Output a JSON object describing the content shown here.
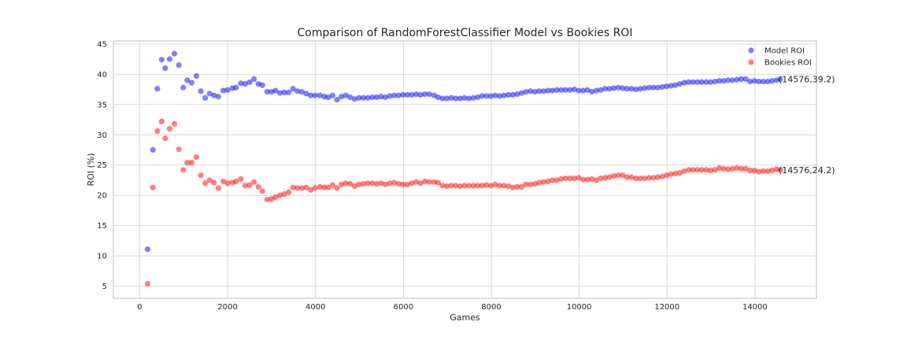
{
  "chart_data": {
    "type": "scatter",
    "title": "Comparison of RandomForestClassifier Model vs Bookies ROI",
    "xlabel": "Games",
    "ylabel": "ROI (%)",
    "xlim": [
      -600,
      15400
    ],
    "ylim": [
      3,
      45.5
    ],
    "xticks": [
      0,
      2000,
      4000,
      6000,
      8000,
      10000,
      12000,
      14000
    ],
    "yticks": [
      5,
      10,
      15,
      20,
      25,
      30,
      35,
      40,
      45
    ],
    "grid": true,
    "legend_position": "top-right",
    "series": [
      {
        "name": "Model ROI",
        "color": "#0000ff",
        "points": [
          [
            180,
            11.1
          ],
          [
            300,
            27.5
          ],
          [
            400,
            37.6
          ],
          [
            500,
            42.4
          ],
          [
            580,
            41.0
          ],
          [
            680,
            42.5
          ],
          [
            790,
            43.4
          ],
          [
            890,
            41.5
          ],
          [
            990,
            37.8
          ],
          [
            1080,
            39.0
          ],
          [
            1180,
            38.6
          ],
          [
            1290,
            39.7
          ],
          [
            1390,
            37.2
          ],
          [
            1490,
            36.1
          ],
          [
            1590,
            36.8
          ],
          [
            1690,
            36.5
          ],
          [
            1790,
            36.3
          ],
          [
            1900,
            37.3
          ],
          [
            2000,
            37.4
          ],
          [
            2110,
            37.7
          ],
          [
            2190,
            37.8
          ],
          [
            2300,
            38.5
          ],
          [
            2400,
            38.4
          ],
          [
            2500,
            38.7
          ],
          [
            2600,
            39.2
          ],
          [
            2700,
            38.4
          ],
          [
            2790,
            38.2
          ],
          [
            2900,
            37.1
          ],
          [
            3000,
            37.1
          ],
          [
            3090,
            37.3
          ],
          [
            3190,
            36.9
          ],
          [
            3290,
            37.0
          ],
          [
            3390,
            37.0
          ],
          [
            3490,
            37.6
          ],
          [
            3590,
            37.2
          ],
          [
            3690,
            37.1
          ],
          [
            3790,
            36.8
          ],
          [
            3890,
            36.5
          ],
          [
            3990,
            36.5
          ],
          [
            4100,
            36.5
          ],
          [
            4200,
            36.3
          ],
          [
            4290,
            36.2
          ],
          [
            4390,
            36.5
          ],
          [
            4490,
            35.8
          ],
          [
            4590,
            36.3
          ],
          [
            4690,
            36.5
          ],
          [
            4790,
            36.2
          ],
          [
            4890,
            35.9
          ],
          [
            4990,
            36.1
          ],
          [
            5090,
            36.1
          ],
          [
            5190,
            36.1
          ],
          [
            5290,
            36.2
          ],
          [
            5390,
            36.2
          ],
          [
            5490,
            36.3
          ],
          [
            5590,
            36.2
          ],
          [
            5690,
            36.4
          ],
          [
            5790,
            36.5
          ],
          [
            5890,
            36.5
          ],
          [
            5990,
            36.6
          ],
          [
            6090,
            36.6
          ],
          [
            6190,
            36.6
          ],
          [
            6290,
            36.7
          ],
          [
            6390,
            36.6
          ],
          [
            6490,
            36.7
          ],
          [
            6590,
            36.7
          ],
          [
            6700,
            36.5
          ],
          [
            6790,
            36.2
          ],
          [
            6890,
            36.0
          ],
          [
            6990,
            36.0
          ],
          [
            7090,
            36.1
          ],
          [
            7190,
            36.0
          ],
          [
            7290,
            36.0
          ],
          [
            7390,
            36.1
          ],
          [
            7490,
            36.0
          ],
          [
            7590,
            36.1
          ],
          [
            7690,
            36.2
          ],
          [
            7790,
            36.4
          ],
          [
            7890,
            36.4
          ],
          [
            7990,
            36.4
          ],
          [
            8090,
            36.5
          ],
          [
            8190,
            36.4
          ],
          [
            8290,
            36.5
          ],
          [
            8390,
            36.6
          ],
          [
            8490,
            36.6
          ],
          [
            8590,
            36.7
          ],
          [
            8690,
            36.9
          ],
          [
            8790,
            37.1
          ],
          [
            8890,
            37.2
          ],
          [
            8990,
            37.1
          ],
          [
            9090,
            37.2
          ],
          [
            9190,
            37.2
          ],
          [
            9290,
            37.3
          ],
          [
            9390,
            37.3
          ],
          [
            9490,
            37.4
          ],
          [
            9590,
            37.4
          ],
          [
            9690,
            37.4
          ],
          [
            9790,
            37.4
          ],
          [
            9890,
            37.5
          ],
          [
            9990,
            37.3
          ],
          [
            10090,
            37.3
          ],
          [
            10190,
            37.4
          ],
          [
            10290,
            37.1
          ],
          [
            10390,
            37.3
          ],
          [
            10490,
            37.4
          ],
          [
            10590,
            37.6
          ],
          [
            10690,
            37.6
          ],
          [
            10790,
            37.7
          ],
          [
            10890,
            37.8
          ],
          [
            10990,
            37.7
          ],
          [
            11090,
            37.6
          ],
          [
            11190,
            37.6
          ],
          [
            11290,
            37.5
          ],
          [
            11390,
            37.6
          ],
          [
            11490,
            37.7
          ],
          [
            11590,
            37.8
          ],
          [
            11690,
            37.8
          ],
          [
            11790,
            37.8
          ],
          [
            11890,
            37.9
          ],
          [
            11990,
            38.0
          ],
          [
            12090,
            38.1
          ],
          [
            12190,
            38.2
          ],
          [
            12290,
            38.4
          ],
          [
            12390,
            38.6
          ],
          [
            12490,
            38.7
          ],
          [
            12590,
            38.7
          ],
          [
            12690,
            38.7
          ],
          [
            12790,
            38.7
          ],
          [
            12890,
            38.7
          ],
          [
            12990,
            38.7
          ],
          [
            13090,
            38.8
          ],
          [
            13190,
            38.9
          ],
          [
            13290,
            38.9
          ],
          [
            13390,
            39.0
          ],
          [
            13490,
            39.0
          ],
          [
            13590,
            39.1
          ],
          [
            13690,
            39.2
          ],
          [
            13790,
            39.2
          ],
          [
            13890,
            38.8
          ],
          [
            13990,
            38.9
          ],
          [
            14090,
            38.8
          ],
          [
            14190,
            38.8
          ],
          [
            14290,
            38.8
          ],
          [
            14390,
            38.9
          ],
          [
            14490,
            39.0
          ],
          [
            14576,
            39.2
          ]
        ]
      },
      {
        "name": "Bookies ROI",
        "color": "#ff0000",
        "points": [
          [
            180,
            5.4
          ],
          [
            300,
            21.3
          ],
          [
            400,
            30.6
          ],
          [
            500,
            32.2
          ],
          [
            580,
            29.4
          ],
          [
            680,
            31.0
          ],
          [
            790,
            31.8
          ],
          [
            890,
            27.6
          ],
          [
            990,
            24.2
          ],
          [
            1080,
            25.4
          ],
          [
            1180,
            25.4
          ],
          [
            1290,
            26.3
          ],
          [
            1390,
            23.3
          ],
          [
            1490,
            22.0
          ],
          [
            1590,
            22.5
          ],
          [
            1690,
            22.1
          ],
          [
            1790,
            21.2
          ],
          [
            1900,
            22.3
          ],
          [
            2000,
            22.0
          ],
          [
            2110,
            22.1
          ],
          [
            2190,
            22.3
          ],
          [
            2300,
            22.7
          ],
          [
            2400,
            21.6
          ],
          [
            2500,
            21.7
          ],
          [
            2600,
            22.2
          ],
          [
            2700,
            21.4
          ],
          [
            2790,
            20.7
          ],
          [
            2900,
            19.3
          ],
          [
            3000,
            19.4
          ],
          [
            3090,
            19.7
          ],
          [
            3190,
            20.0
          ],
          [
            3290,
            20.2
          ],
          [
            3390,
            20.5
          ],
          [
            3490,
            21.3
          ],
          [
            3590,
            21.2
          ],
          [
            3690,
            21.2
          ],
          [
            3790,
            21.3
          ],
          [
            3890,
            20.9
          ],
          [
            3990,
            21.2
          ],
          [
            4100,
            21.4
          ],
          [
            4200,
            21.3
          ],
          [
            4290,
            21.3
          ],
          [
            4390,
            21.7
          ],
          [
            4490,
            21.2
          ],
          [
            4590,
            21.8
          ],
          [
            4690,
            22.0
          ],
          [
            4790,
            21.9
          ],
          [
            4890,
            21.5
          ],
          [
            4990,
            21.8
          ],
          [
            5090,
            21.9
          ],
          [
            5190,
            22.0
          ],
          [
            5290,
            22.0
          ],
          [
            5390,
            21.9
          ],
          [
            5490,
            22.0
          ],
          [
            5590,
            21.8
          ],
          [
            5690,
            22.0
          ],
          [
            5790,
            22.1
          ],
          [
            5890,
            21.9
          ],
          [
            5990,
            21.8
          ],
          [
            6090,
            21.8
          ],
          [
            6190,
            22.0
          ],
          [
            6290,
            22.2
          ],
          [
            6390,
            22.0
          ],
          [
            6490,
            22.3
          ],
          [
            6590,
            22.2
          ],
          [
            6700,
            22.2
          ],
          [
            6790,
            22.1
          ],
          [
            6890,
            21.6
          ],
          [
            6990,
            21.5
          ],
          [
            7090,
            21.6
          ],
          [
            7190,
            21.6
          ],
          [
            7290,
            21.5
          ],
          [
            7390,
            21.6
          ],
          [
            7490,
            21.6
          ],
          [
            7590,
            21.6
          ],
          [
            7690,
            21.6
          ],
          [
            7790,
            21.6
          ],
          [
            7890,
            21.7
          ],
          [
            7990,
            21.6
          ],
          [
            8090,
            21.8
          ],
          [
            8190,
            21.6
          ],
          [
            8290,
            21.6
          ],
          [
            8390,
            21.5
          ],
          [
            8490,
            21.3
          ],
          [
            8590,
            21.4
          ],
          [
            8690,
            21.4
          ],
          [
            8790,
            21.8
          ],
          [
            8890,
            21.8
          ],
          [
            8990,
            21.9
          ],
          [
            9090,
            22.1
          ],
          [
            9190,
            22.2
          ],
          [
            9290,
            22.3
          ],
          [
            9390,
            22.5
          ],
          [
            9490,
            22.5
          ],
          [
            9590,
            22.7
          ],
          [
            9690,
            22.8
          ],
          [
            9790,
            22.8
          ],
          [
            9890,
            22.8
          ],
          [
            9990,
            22.9
          ],
          [
            10090,
            22.6
          ],
          [
            10190,
            22.6
          ],
          [
            10290,
            22.7
          ],
          [
            10390,
            22.5
          ],
          [
            10490,
            22.8
          ],
          [
            10590,
            22.9
          ],
          [
            10690,
            23.0
          ],
          [
            10790,
            23.2
          ],
          [
            10890,
            23.3
          ],
          [
            10990,
            23.3
          ],
          [
            11090,
            23.0
          ],
          [
            11190,
            23.0
          ],
          [
            11290,
            22.8
          ],
          [
            11390,
            22.8
          ],
          [
            11490,
            22.8
          ],
          [
            11590,
            22.9
          ],
          [
            11690,
            22.9
          ],
          [
            11790,
            23.0
          ],
          [
            11890,
            23.1
          ],
          [
            11990,
            23.3
          ],
          [
            12090,
            23.5
          ],
          [
            12190,
            23.6
          ],
          [
            12290,
            23.7
          ],
          [
            12390,
            24.0
          ],
          [
            12490,
            24.2
          ],
          [
            12590,
            24.2
          ],
          [
            12690,
            24.2
          ],
          [
            12790,
            24.2
          ],
          [
            12890,
            24.2
          ],
          [
            12990,
            24.1
          ],
          [
            13090,
            24.2
          ],
          [
            13190,
            24.5
          ],
          [
            13290,
            24.4
          ],
          [
            13390,
            24.3
          ],
          [
            13490,
            24.4
          ],
          [
            13590,
            24.5
          ],
          [
            13690,
            24.4
          ],
          [
            13790,
            24.4
          ],
          [
            13890,
            24.1
          ],
          [
            13990,
            24.1
          ],
          [
            14090,
            23.9
          ],
          [
            14190,
            24.0
          ],
          [
            14290,
            24.0
          ],
          [
            14390,
            24.1
          ],
          [
            14490,
            24.3
          ],
          [
            14576,
            24.2
          ]
        ]
      }
    ],
    "annotations": [
      {
        "text": "(14576,39.2)",
        "x": 14576,
        "y": 39.2
      },
      {
        "text": "(14576,24.2)",
        "x": 14576,
        "y": 24.2
      }
    ]
  }
}
